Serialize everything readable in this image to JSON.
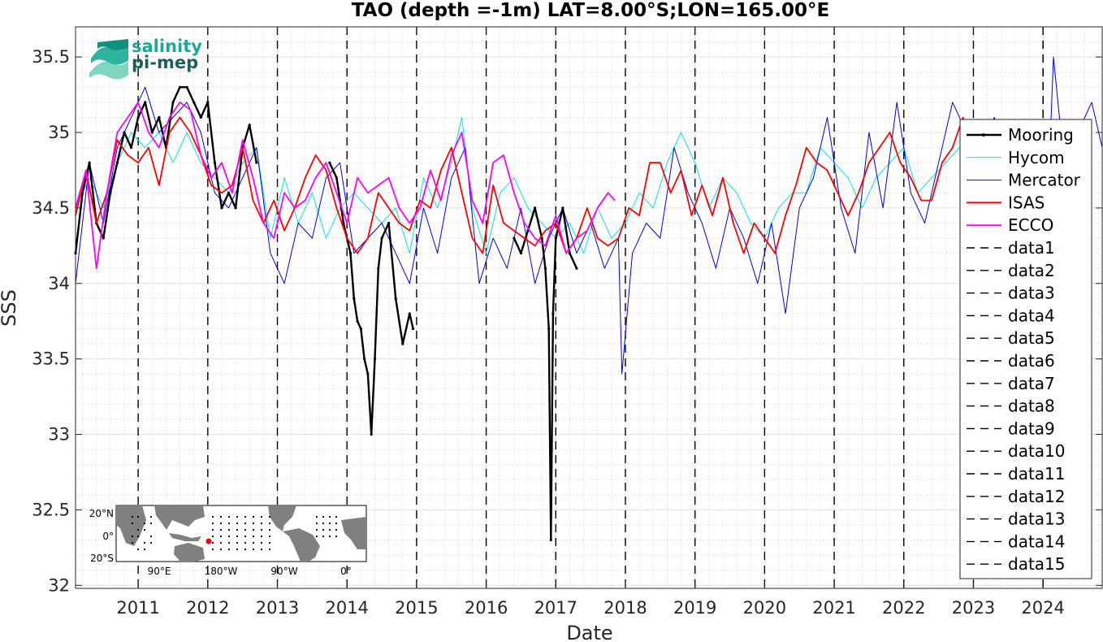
{
  "chart_data": {
    "type": "line",
    "title": "TAO (depth =-1m) LAT=8.00°S;LON=165.00°E",
    "xlabel": "Date",
    "ylabel": "SSS",
    "xlim": [
      2010.1,
      2024.85
    ],
    "ylim": [
      31.98,
      35.7
    ],
    "x_tick_labels": [
      "2011",
      "2012",
      "2013",
      "2014",
      "2015",
      "2016",
      "2017",
      "2018",
      "2019",
      "2020",
      "2021",
      "2022",
      "2023",
      "2024"
    ],
    "y_tick_labels": [
      "32",
      "32.5",
      "33",
      "33.5",
      "34",
      "34.5",
      "35",
      "35.5"
    ],
    "grid": true,
    "minor_grid": true,
    "legend_position": "right",
    "series": [
      {
        "name": "Mooring",
        "color": "#000000",
        "style": "solid-dots",
        "segments": [
          {
            "x": [
              2010.1,
              2010.2,
              2010.3,
              2010.4,
              2010.5,
              2010.6,
              2010.7,
              2010.8,
              2010.9,
              2011.0,
              2011.1,
              2011.2,
              2011.3,
              2011.4,
              2011.5,
              2011.6,
              2011.7,
              2011.8,
              2011.9,
              2012.0,
              2012.1,
              2012.2,
              2012.3,
              2012.4,
              2012.5,
              2012.6,
              2012.7
            ],
            "y": [
              34.2,
              34.6,
              34.8,
              34.4,
              34.3,
              34.6,
              34.8,
              35.0,
              34.9,
              35.1,
              35.2,
              35.0,
              35.1,
              34.9,
              35.2,
              35.3,
              35.3,
              35.2,
              35.1,
              35.2,
              34.8,
              34.5,
              34.6,
              34.5,
              34.9,
              35.05,
              34.8
            ]
          },
          {
            "x": [
              2013.75,
              2013.85,
              2013.95,
              2014.05,
              2014.1,
              2014.15,
              2014.2,
              2014.25,
              2014.3,
              2014.35,
              2014.4,
              2014.45,
              2014.5,
              2014.6,
              2014.7,
              2014.8,
              2014.9,
              2014.95
            ],
            "y": [
              34.8,
              34.7,
              34.4,
              34.2,
              33.9,
              33.75,
              33.7,
              33.5,
              33.4,
              33.0,
              33.5,
              34.1,
              34.3,
              34.4,
              33.9,
              33.6,
              33.8,
              33.7
            ]
          },
          {
            "x": [
              2016.4,
              2016.5,
              2016.6,
              2016.7,
              2016.8,
              2016.85,
              2016.9,
              2016.93,
              2016.96,
              2017.0,
              2017.1,
              2017.2,
              2017.3
            ],
            "y": [
              34.3,
              34.2,
              34.35,
              34.5,
              34.3,
              34.1,
              33.7,
              32.3,
              33.8,
              34.3,
              34.5,
              34.2,
              34.1
            ]
          }
        ]
      },
      {
        "name": "Hycom",
        "color": "#00e5e5",
        "style": "solid",
        "segments": [
          {
            "x": [
              2010.1,
              2010.3,
              2010.5,
              2010.7,
              2010.9,
              2011.1,
              2011.3,
              2011.5,
              2011.7,
              2011.9,
              2012.1,
              2012.3,
              2012.5,
              2012.7,
              2012.9,
              2013.1,
              2013.3,
              2013.5,
              2013.7,
              2013.9,
              2014.1,
              2014.3,
              2014.5,
              2014.7,
              2014.9,
              2015.1,
              2015.3,
              2015.5,
              2015.65,
              2015.8,
              2016.0,
              2016.2,
              2016.4,
              2016.6,
              2016.8,
              2017.0,
              2017.2,
              2017.4,
              2017.6,
              2017.8,
              2018.0,
              2018.2,
              2018.4,
              2018.6,
              2018.8,
              2019.0,
              2019.2,
              2019.4,
              2019.6,
              2019.8,
              2020.0,
              2020.2,
              2020.4,
              2020.6,
              2020.8,
              2021.0,
              2021.2,
              2021.4,
              2021.6,
              2021.8,
              2022.0,
              2022.2,
              2022.4,
              2022.6,
              2022.8,
              2023.0
            ],
            "y": [
              34.5,
              34.7,
              34.5,
              34.8,
              35.0,
              34.9,
              35.0,
              34.8,
              35.0,
              34.8,
              34.7,
              34.6,
              34.8,
              34.9,
              34.3,
              34.7,
              34.4,
              34.6,
              34.3,
              34.5,
              34.6,
              34.5,
              34.4,
              34.5,
              34.2,
              34.7,
              34.5,
              34.8,
              35.1,
              34.5,
              34.2,
              34.6,
              34.7,
              34.5,
              34.4,
              34.3,
              34.4,
              34.2,
              34.5,
              34.3,
              34.4,
              34.6,
              34.5,
              34.8,
              35.0,
              34.8,
              34.5,
              34.7,
              34.6,
              34.4,
              34.3,
              34.5,
              34.6,
              34.6,
              34.9,
              34.8,
              34.7,
              34.5,
              34.7,
              34.8,
              34.9,
              34.6,
              34.7,
              34.8,
              34.9,
              34.7
            ]
          }
        ]
      },
      {
        "name": "Mercator",
        "color": "#0000dd",
        "style": "solid",
        "segments": [
          {
            "x": [
              2010.1,
              2010.3,
              2010.5,
              2010.7,
              2010.9,
              2011.1,
              2011.3,
              2011.5,
              2011.7,
              2011.9,
              2012.1,
              2012.3,
              2012.5,
              2012.7,
              2012.9,
              2013.1,
              2013.3,
              2013.5,
              2013.7,
              2013.9,
              2014.1,
              2014.3,
              2014.5,
              2014.7,
              2014.9,
              2015.1,
              2015.3,
              2015.5,
              2015.7,
              2015.9,
              2016.1,
              2016.3,
              2016.5,
              2016.7,
              2016.9,
              2017.1,
              2017.3,
              2017.5,
              2017.7,
              2017.9,
              2017.95,
              2018.1,
              2018.3,
              2018.5,
              2018.7,
              2018.9,
              2019.1,
              2019.3,
              2019.5,
              2019.7,
              2019.9,
              2020.1,
              2020.3,
              2020.5,
              2020.7,
              2020.9,
              2021.1,
              2021.3,
              2021.5,
              2021.7,
              2021.9,
              2022.1,
              2022.3,
              2022.5,
              2022.7,
              2022.9,
              2023.1,
              2023.3,
              2023.5,
              2023.7,
              2023.9,
              2024.1,
              2024.15,
              2024.3,
              2024.5,
              2024.7,
              2024.85
            ],
            "y": [
              34.0,
              34.8,
              34.4,
              34.9,
              35.1,
              35.3,
              35.0,
              35.1,
              35.2,
              35.0,
              34.6,
              34.5,
              34.7,
              34.9,
              34.2,
              34.0,
              34.4,
              34.3,
              34.7,
              34.8,
              34.2,
              34.3,
              34.4,
              34.2,
              34.0,
              34.5,
              34.2,
              34.7,
              34.9,
              34.0,
              34.3,
              34.1,
              34.5,
              34.0,
              34.3,
              34.5,
              34.2,
              34.4,
              34.1,
              34.3,
              33.4,
              34.2,
              34.4,
              34.3,
              34.9,
              34.6,
              34.4,
              34.1,
              34.5,
              34.3,
              34.0,
              34.4,
              33.8,
              34.5,
              34.7,
              35.1,
              34.5,
              34.2,
              35.0,
              34.5,
              35.2,
              34.6,
              34.4,
              34.8,
              35.2,
              35.0,
              34.9,
              35.1,
              34.8,
              34.9,
              35.0,
              34.9,
              35.5,
              34.8,
              35.0,
              35.2,
              34.9
            ]
          }
        ]
      },
      {
        "name": "ISAS",
        "color": "#ff0000",
        "style": "solid",
        "segments": [
          {
            "x": [
              2010.1,
              2010.25,
              2010.4,
              2010.55,
              2010.7,
              2010.85,
              2011.0,
              2011.15,
              2011.3,
              2011.45,
              2011.6,
              2011.75,
              2011.9,
              2012.05,
              2012.2,
              2012.35,
              2012.5,
              2012.65,
              2012.8,
              2012.95,
              2013.1,
              2013.25,
              2013.4,
              2013.55,
              2013.7,
              2013.85,
              2014.0,
              2014.15,
              2014.3,
              2014.45,
              2014.6,
              2014.75,
              2014.9,
              2015.05,
              2015.2,
              2015.35,
              2015.5,
              2015.65,
              2015.8,
              2015.95,
              2016.1,
              2016.25,
              2016.4,
              2016.55,
              2016.7,
              2016.85,
              2017.0,
              2017.15,
              2017.3,
              2017.45,
              2017.6,
              2017.75,
              2017.9,
              2018.05,
              2018.2,
              2018.35,
              2018.5,
              2018.65,
              2018.8,
              2018.95,
              2019.1,
              2019.25,
              2019.4,
              2019.55,
              2019.7,
              2019.85,
              2020.0,
              2020.15,
              2020.3,
              2020.45,
              2020.6,
              2020.75,
              2020.9,
              2021.05,
              2021.2,
              2021.35,
              2021.5,
              2021.65,
              2021.8,
              2021.95,
              2022.1,
              2022.25,
              2022.4,
              2022.55,
              2022.7,
              2022.85,
              2022.95
            ],
            "y": [
              34.45,
              34.75,
              34.4,
              34.6,
              34.95,
              34.85,
              34.8,
              34.9,
              34.65,
              35.0,
              35.1,
              35.0,
              34.85,
              34.65,
              34.6,
              34.65,
              34.9,
              34.55,
              34.4,
              34.55,
              34.35,
              34.5,
              34.7,
              34.85,
              34.75,
              34.5,
              34.3,
              34.2,
              34.3,
              34.6,
              34.5,
              34.4,
              34.35,
              34.55,
              34.5,
              34.75,
              34.9,
              34.6,
              34.3,
              34.2,
              34.65,
              34.4,
              34.35,
              34.3,
              34.25,
              34.35,
              34.4,
              34.2,
              34.3,
              34.5,
              34.3,
              34.25,
              34.3,
              34.5,
              34.45,
              34.8,
              34.8,
              34.6,
              34.75,
              34.45,
              34.65,
              34.45,
              34.7,
              34.4,
              34.2,
              34.4,
              34.3,
              34.2,
              34.45,
              34.65,
              34.9,
              34.8,
              34.75,
              34.6,
              34.45,
              34.6,
              34.8,
              34.9,
              35.0,
              34.8,
              34.7,
              34.55,
              34.55,
              34.8,
              34.9,
              35.1,
              34.95
            ]
          }
        ]
      },
      {
        "name": "ECCO",
        "color": "#ff00ff",
        "style": "solid",
        "segments": [
          {
            "x": [
              2010.1,
              2010.25,
              2010.4,
              2010.55,
              2010.7,
              2010.85,
              2011.0,
              2011.15,
              2011.3,
              2011.45,
              2011.6,
              2011.75,
              2011.9,
              2012.05,
              2012.2,
              2012.35,
              2012.5,
              2012.65,
              2012.8,
              2012.95,
              2013.1,
              2013.25,
              2013.4,
              2013.55,
              2013.7,
              2013.85,
              2014.0,
              2014.15,
              2014.3,
              2014.45,
              2014.6,
              2014.75,
              2014.9,
              2015.05,
              2015.2,
              2015.35,
              2015.5,
              2015.65,
              2015.8,
              2015.95,
              2016.1,
              2016.25,
              2016.4,
              2016.55,
              2016.7,
              2016.85,
              2017.0,
              2017.15,
              2017.3,
              2017.45,
              2017.6,
              2017.75,
              2017.85
            ],
            "y": [
              34.5,
              34.75,
              34.1,
              34.6,
              35.0,
              35.1,
              35.2,
              35.0,
              34.9,
              35.1,
              35.2,
              35.15,
              34.85,
              34.7,
              34.8,
              34.6,
              34.95,
              34.7,
              34.4,
              34.3,
              34.6,
              34.5,
              34.55,
              34.7,
              34.8,
              34.6,
              34.4,
              34.7,
              34.6,
              34.65,
              34.7,
              34.5,
              34.4,
              34.5,
              34.75,
              34.55,
              34.85,
              35.0,
              34.55,
              34.4,
              34.8,
              34.85,
              34.6,
              34.4,
              34.3,
              34.25,
              34.45,
              34.2,
              34.3,
              34.35,
              34.5,
              34.6,
              34.55
            ]
          }
        ]
      }
    ],
    "vlines": [
      {
        "name": "data1",
        "x": 2011.0
      },
      {
        "name": "data2",
        "x": 2012.0
      },
      {
        "name": "data3",
        "x": 2013.0
      },
      {
        "name": "data4",
        "x": 2014.0
      },
      {
        "name": "data5",
        "x": 2015.0
      },
      {
        "name": "data6",
        "x": 2016.0
      },
      {
        "name": "data7",
        "x": 2017.0
      },
      {
        "name": "data8",
        "x": 2018.0
      },
      {
        "name": "data9",
        "x": 2019.0
      },
      {
        "name": "data10",
        "x": 2020.0
      },
      {
        "name": "data11",
        "x": 2021.0
      },
      {
        "name": "data12",
        "x": 2022.0
      },
      {
        "name": "data13",
        "x": 2023.0
      },
      {
        "name": "data14",
        "x": 2024.0
      },
      {
        "name": "data15",
        "x": 2024.0
      }
    ],
    "logo": {
      "line1": "salinity",
      "line2": "pi-mep"
    },
    "inset_map": {
      "lat_labels": [
        "20°N",
        "0°",
        "20°S"
      ],
      "lon_labels": [
        "90°E",
        "180°W",
        "90°W",
        "0°"
      ],
      "marker_color": "#ff0000"
    }
  }
}
